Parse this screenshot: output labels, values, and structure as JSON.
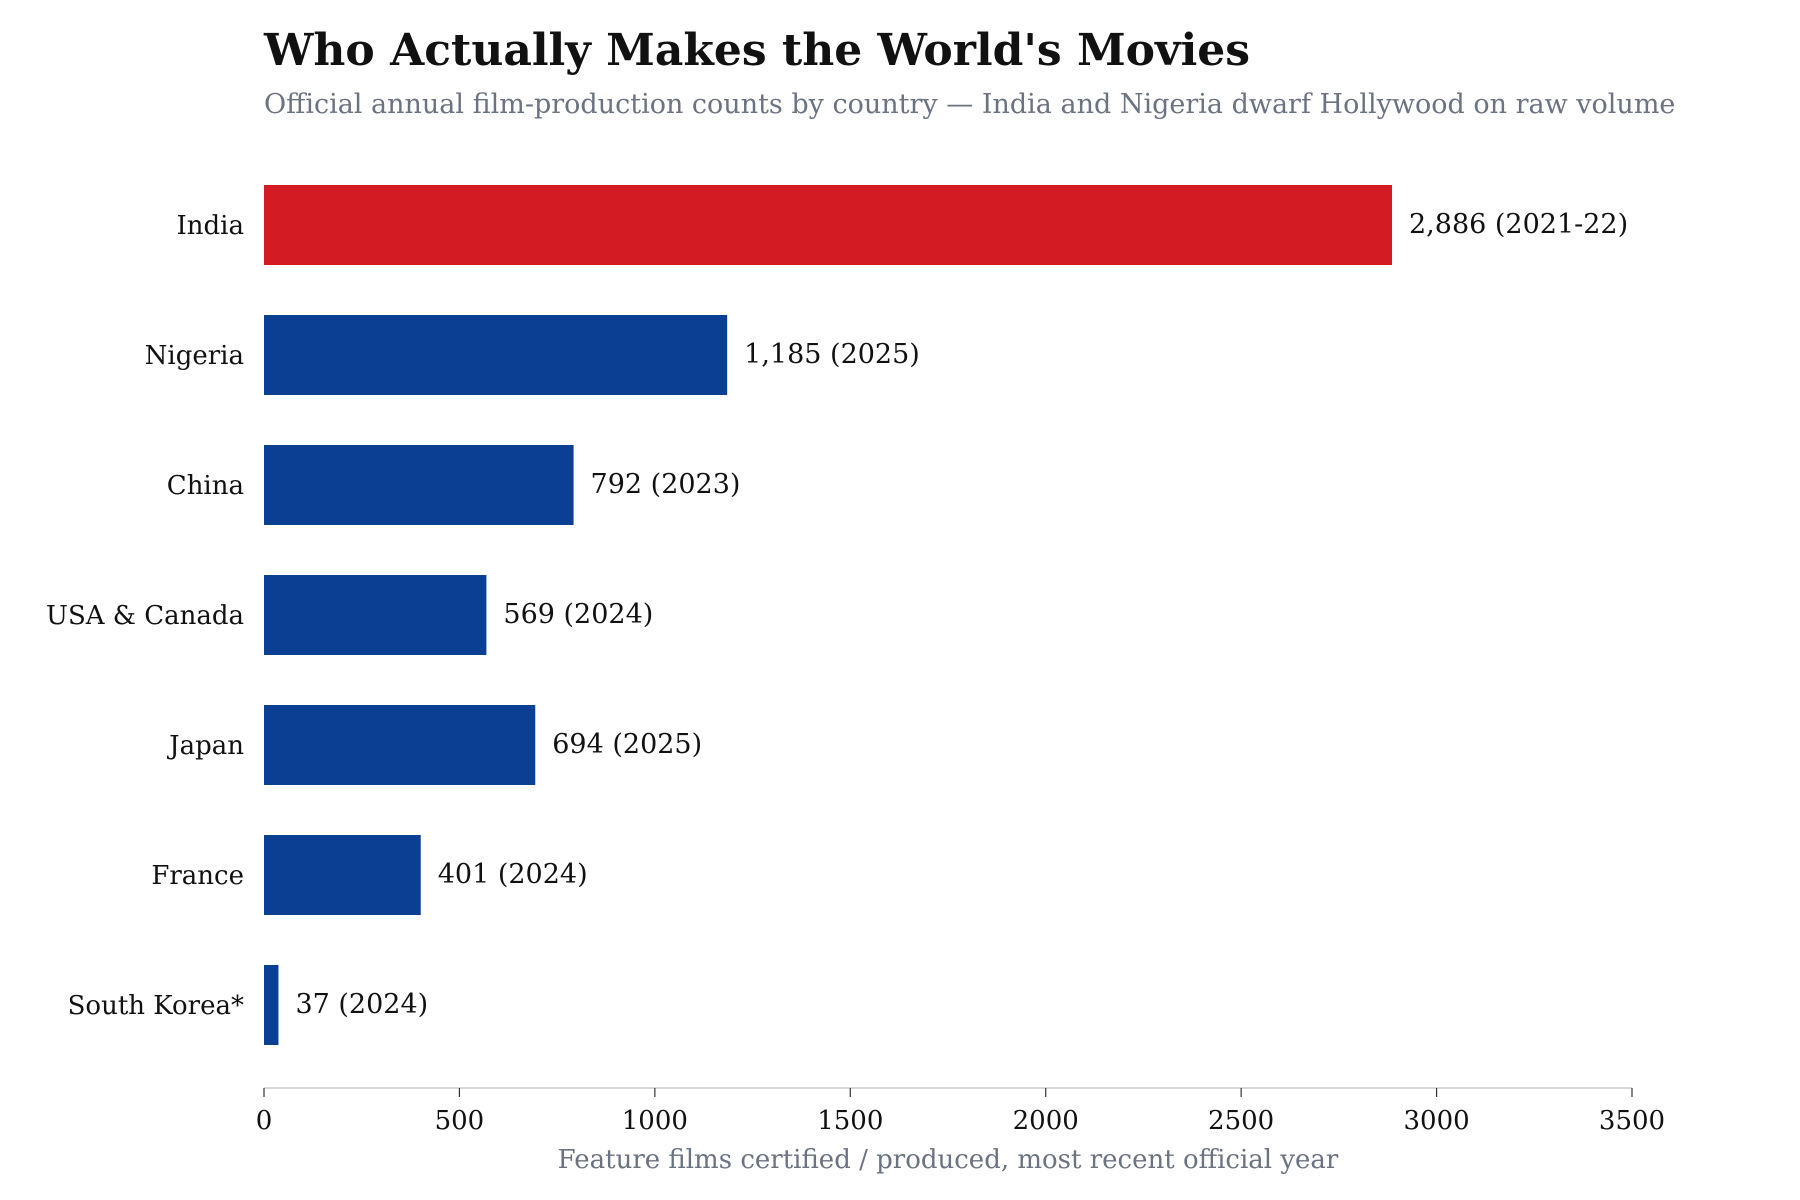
{
  "chart_data": {
    "type": "bar",
    "orientation": "horizontal",
    "title": "Who Actually Makes the World's Movies",
    "subtitle": "Official annual film-production counts by country — India and Nigeria dwarf Hollywood on raw volume",
    "xlabel": "Feature films certified / produced, most recent official year",
    "ylabel": "",
    "xlim": [
      0,
      3500
    ],
    "xticks": [
      0,
      500,
      1000,
      1500,
      2000,
      2500,
      3000,
      3500
    ],
    "grid": false,
    "categories": [
      "India",
      "Nigeria",
      "China",
      "USA & Canada",
      "Japan",
      "France",
      "South Korea*"
    ],
    "values": [
      2886,
      1185,
      792,
      569,
      694,
      401,
      37
    ],
    "years": [
      "2021-22",
      "2025",
      "2023",
      "2024",
      "2025",
      "2024",
      "2024"
    ],
    "data_labels": [
      "2,886  (2021-22)",
      "1,185  (2025)",
      "792  (2023)",
      "569  (2024)",
      "694  (2025)",
      "401  (2024)",
      "37  (2024)"
    ],
    "colors": {
      "highlight": "#d31b24",
      "default": "#0b3f94",
      "axis": "#cccccc"
    },
    "highlight_category": "India"
  }
}
